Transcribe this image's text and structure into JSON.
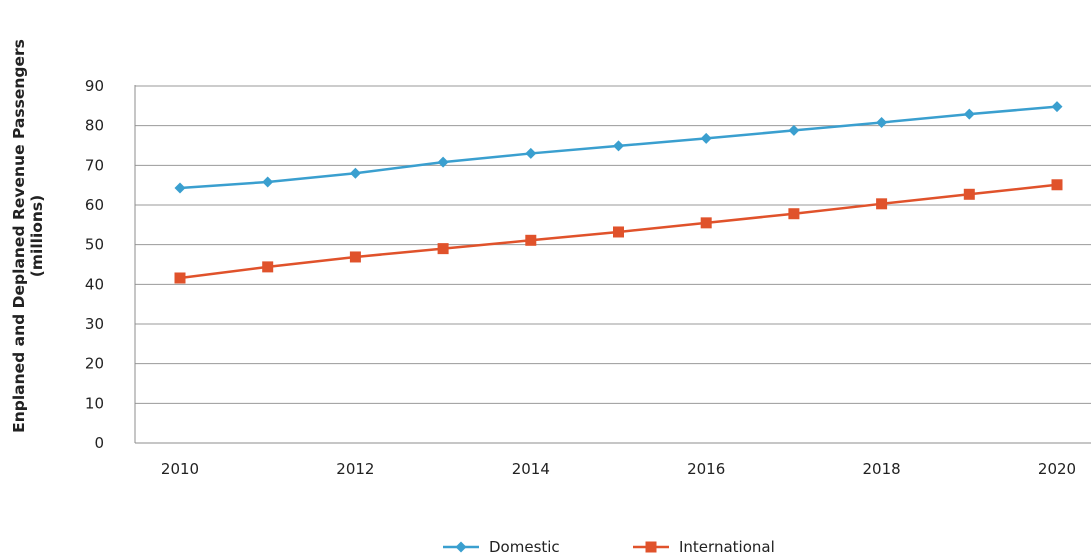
{
  "chart_data": {
    "type": "line",
    "title": "",
    "xlabel": "",
    "ylabel": [
      "Enplaned and Deplaned Revenue Passengers",
      "(millions)"
    ],
    "x": [
      2010,
      2011,
      2012,
      2013,
      2014,
      2015,
      2016,
      2017,
      2018,
      2019,
      2020
    ],
    "x_tick_labels": [
      "2010",
      "2012",
      "2014",
      "2016",
      "2018",
      "2020"
    ],
    "y_tick_labels": [
      "0",
      "10",
      "20",
      "30",
      "40",
      "50",
      "60",
      "70",
      "80",
      "90"
    ],
    "ylim": [
      0,
      90
    ],
    "xlim": [
      2010,
      2020
    ],
    "grid": "horizontal",
    "legend_position": "bottom",
    "series": [
      {
        "name": "Domestic",
        "color": "#3a9fcf",
        "marker": "diamond",
        "values": [
          64.3,
          65.8,
          68.0,
          70.8,
          73.0,
          74.9,
          76.8,
          78.8,
          80.8,
          82.9,
          84.8
        ]
      },
      {
        "name": "International",
        "color": "#e0522b",
        "marker": "square",
        "values": [
          41.6,
          44.4,
          46.9,
          49.0,
          51.1,
          53.2,
          55.5,
          57.8,
          60.3,
          62.7,
          65.1
        ]
      }
    ]
  }
}
